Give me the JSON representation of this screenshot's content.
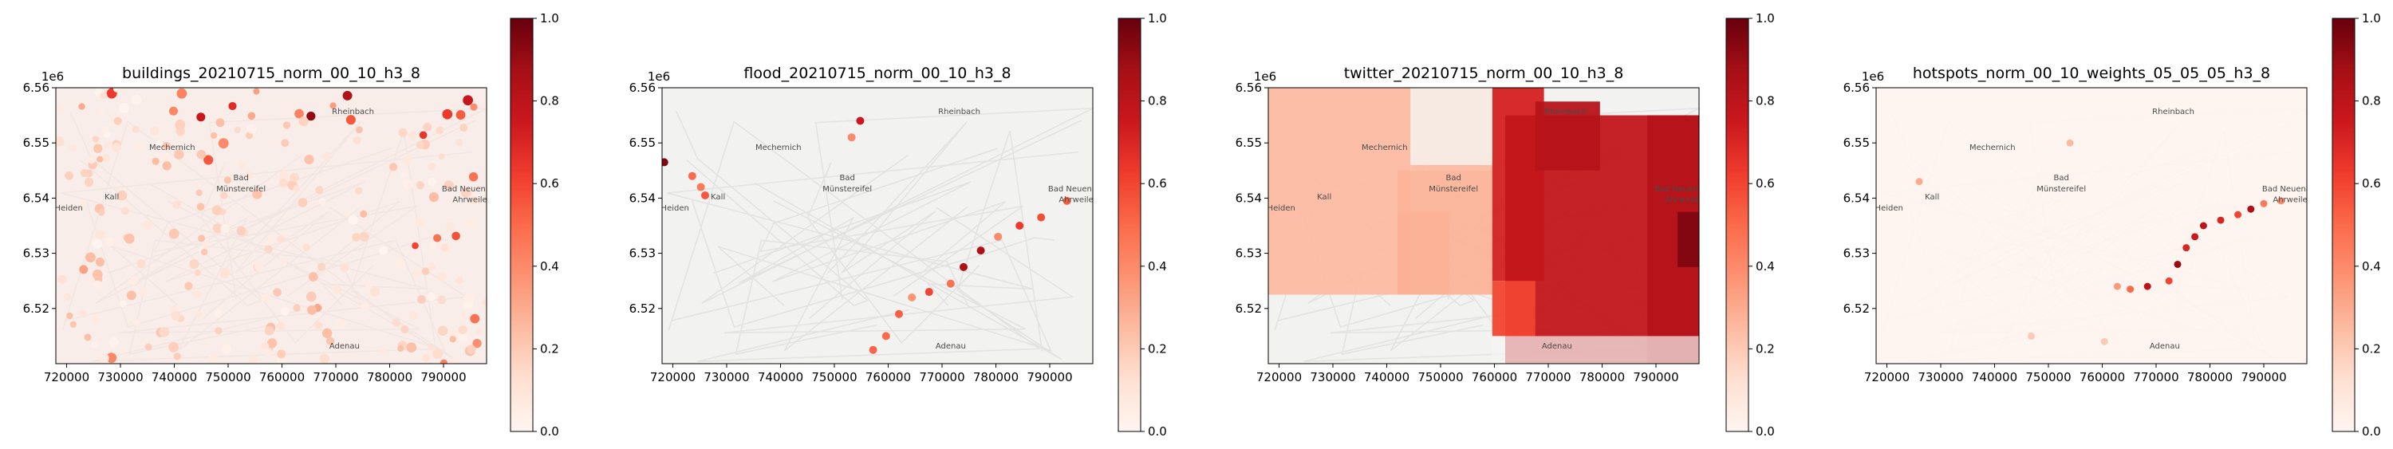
{
  "chart_data": [
    {
      "type": "heatmap",
      "title": "buildings_20210715_norm_00_10_h3_8",
      "pattern": "scatter",
      "xlim": [
        718000,
        798000
      ],
      "ylim": [
        6.51,
        6.56
      ],
      "xticks": [
        "720000",
        "730000",
        "740000",
        "750000",
        "760000",
        "770000",
        "780000",
        "790000"
      ],
      "yticks": [
        "6.52",
        "6.53",
        "6.54",
        "6.55",
        "6.56"
      ],
      "y_offset_label": "1e6",
      "colorbar": {
        "range": [
          0.0,
          1.0
        ],
        "ticks": [
          "0.0",
          "0.2",
          "0.4",
          "0.6",
          "0.8",
          "1.0"
        ],
        "colormap": "Reds"
      },
      "places": [
        "Rheinbach",
        "Mechernich",
        "Bad",
        "Münstereifel",
        "Bad Neuenahr-",
        "Ahrweiler",
        "Kall",
        "Heiden",
        "Adenau"
      ]
    },
    {
      "type": "heatmap",
      "title": "flood_20210715_norm_00_10_h3_8",
      "pattern": "river",
      "xlim": [
        718000,
        798000
      ],
      "ylim": [
        6.51,
        6.56
      ],
      "xticks": [
        "720000",
        "730000",
        "740000",
        "750000",
        "760000",
        "770000",
        "780000",
        "790000"
      ],
      "yticks": [
        "6.52",
        "6.53",
        "6.54",
        "6.55",
        "6.56"
      ],
      "y_offset_label": "1e6",
      "colorbar": {
        "range": [
          0.0,
          1.0
        ],
        "ticks": [
          "0.0",
          "0.2",
          "0.4",
          "0.6",
          "0.8",
          "1.0"
        ],
        "colormap": "Reds"
      },
      "places": [
        "Rheinbach",
        "Mechernich",
        "Bad",
        "Münstereifel",
        "Bad Neuenahr-",
        "Ahrweiler",
        "Kall",
        "Heiden",
        "Adenau"
      ]
    },
    {
      "type": "heatmap",
      "title": "twitter_20210715_norm_00_10_h3_8",
      "pattern": "blocks",
      "xlim": [
        718000,
        798000
      ],
      "ylim": [
        6.51,
        6.56
      ],
      "xticks": [
        "720000",
        "730000",
        "740000",
        "750000",
        "760000",
        "770000",
        "780000",
        "790000"
      ],
      "yticks": [
        "6.52",
        "6.53",
        "6.54",
        "6.55",
        "6.56"
      ],
      "y_offset_label": "1e6",
      "colorbar": {
        "range": [
          0.0,
          1.0
        ],
        "ticks": [
          "0.0",
          "0.2",
          "0.4",
          "0.6",
          "0.8",
          "1.0"
        ],
        "colormap": "Reds"
      },
      "places": [
        "Rheinbach",
        "Mechernich",
        "Bad",
        "Münstereifel",
        "Bad Neuenahr-",
        "Ahrweiler",
        "Kall",
        "Heiden",
        "Adenau"
      ]
    },
    {
      "type": "heatmap",
      "title": "hotspots_norm_00_10_weights_05_05_05_h3_8",
      "pattern": "hotspots",
      "xlim": [
        718000,
        798000
      ],
      "ylim": [
        6.51,
        6.56
      ],
      "xticks": [
        "720000",
        "730000",
        "740000",
        "750000",
        "760000",
        "770000",
        "780000",
        "790000"
      ],
      "yticks": [
        "6.52",
        "6.53",
        "6.54",
        "6.55",
        "6.56"
      ],
      "y_offset_label": "1e6",
      "colorbar": {
        "range": [
          0.0,
          1.0
        ],
        "ticks": [
          "0.0",
          "0.2",
          "0.4",
          "0.6",
          "0.8",
          "1.0"
        ],
        "colormap": "Reds"
      },
      "places": [
        "Rheinbach",
        "Mechernich",
        "Bad",
        "Münstereifel",
        "Bad Neuenahr-",
        "Ahrweiler",
        "Kall",
        "Heiden",
        "Adenau"
      ]
    }
  ]
}
